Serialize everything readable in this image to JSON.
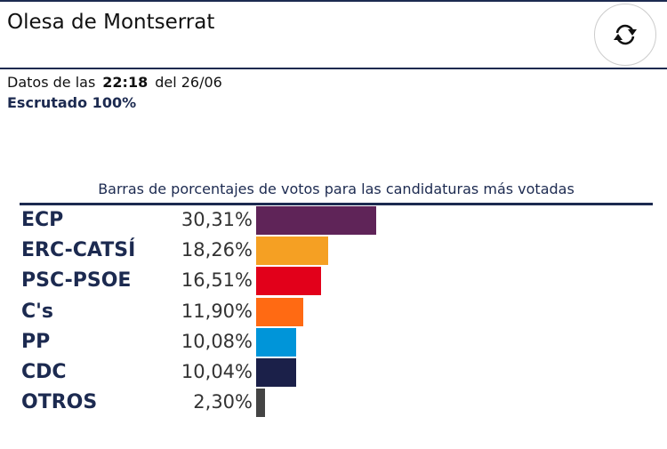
{
  "header": {
    "title": "Olesa de Montserrat",
    "refresh_icon": "refresh-icon"
  },
  "info": {
    "datos_prefix": "Datos de las",
    "time": "22:18",
    "date_text": "del 26/06",
    "escrutado": "Escrutado 100%"
  },
  "chart_data": {
    "type": "bar",
    "title": "Barras de porcentajes de votos para las candidaturas más votadas",
    "categories": [
      "ECP",
      "ERC-CATSÍ",
      "PSC-PSOE",
      "C's",
      "PP",
      "CDC",
      "OTROS"
    ],
    "values": [
      30.31,
      18.26,
      16.51,
      11.9,
      10.08,
      10.04,
      2.3
    ],
    "labels": [
      "30,31%",
      "18,26%",
      "16,51%",
      "11,90%",
      "10,08%",
      "10,04%",
      "2,30%"
    ],
    "colors": [
      "#5f2458",
      "#f5a023",
      "#e2001a",
      "#ff6a13",
      "#0095d9",
      "#1b2049",
      "#444444"
    ]
  }
}
